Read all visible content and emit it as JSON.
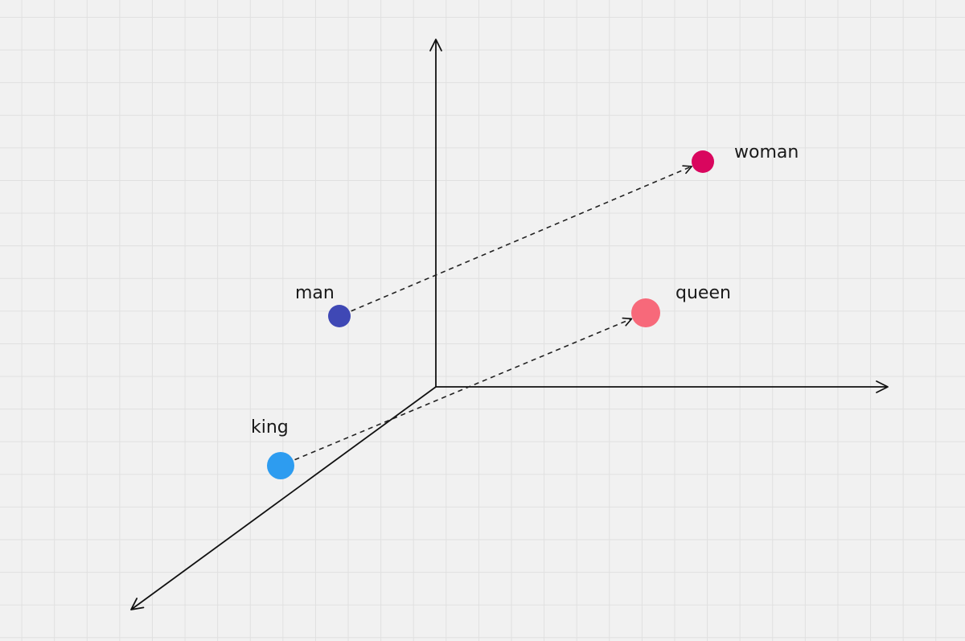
{
  "points": [
    {
      "id": "man",
      "label": "man",
      "color": "#3f48b5"
    },
    {
      "id": "woman",
      "label": "woman",
      "color": "#d9065e"
    },
    {
      "id": "king",
      "label": "king",
      "color": "#2d9cf0"
    },
    {
      "id": "queen",
      "label": "queen",
      "color": "#f7697a"
    }
  ],
  "arrows": [
    {
      "from": "man",
      "to": "woman",
      "style": "dashed"
    },
    {
      "from": "king",
      "to": "queen",
      "style": "dashed"
    }
  ],
  "colors": {
    "axis": "#111111",
    "arrow": "#222222",
    "background": "#f1f1f1",
    "grid": "#e0e0e0"
  }
}
